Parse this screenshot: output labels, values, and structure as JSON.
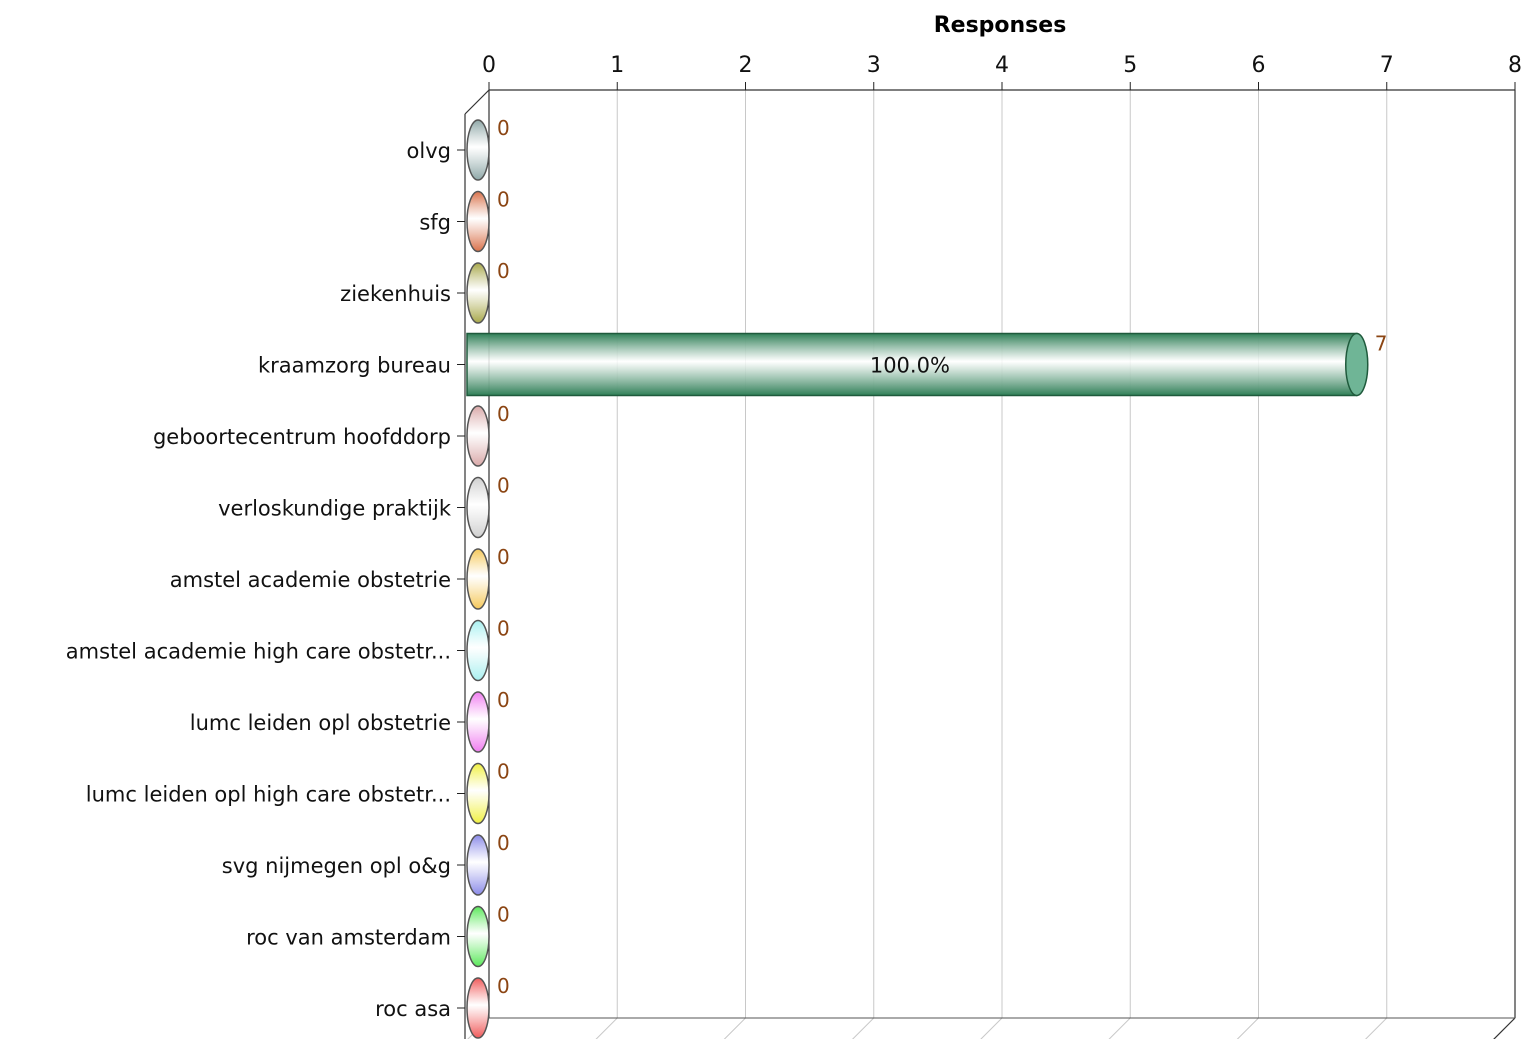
{
  "chart_data": {
    "type": "bar",
    "orientation": "horizontal",
    "title": "",
    "xlabel": "Responses",
    "ylabel": "",
    "xticks": [
      0,
      1,
      2,
      3,
      4,
      5,
      6,
      7,
      8
    ],
    "xlim": [
      0,
      8
    ],
    "grid": true,
    "categories": [
      "olvg",
      "sfg",
      "ziekenhuis",
      "kraamzorg bureau",
      "geboortecentrum hoofddorp",
      "verloskundige praktijk",
      "amstel academie obstetrie",
      "amstel academie high care obstetr...",
      "lumc leiden opl obstetrie",
      "lumc leiden opl high care obstetr...",
      "svg nijmegen opl o&g",
      "roc van amsterdam",
      "roc asa"
    ],
    "values": [
      0,
      0,
      0,
      7,
      0,
      0,
      0,
      0,
      0,
      0,
      0,
      0,
      0
    ],
    "percent_labels": [
      "",
      "",
      "",
      "100.0%",
      "",
      "",
      "",
      "",
      "",
      "",
      "",
      "",
      ""
    ],
    "colors": [
      "#8fa8a8",
      "#d9714a",
      "#a8a84a",
      "#2f7f57",
      "#d9a8a8",
      "#cfcfcf",
      "#f5c85a",
      "#a8f0f0",
      "#f07cf0",
      "#f0f040",
      "#8a8ae8",
      "#5ae85a",
      "#f05a5a"
    ]
  }
}
